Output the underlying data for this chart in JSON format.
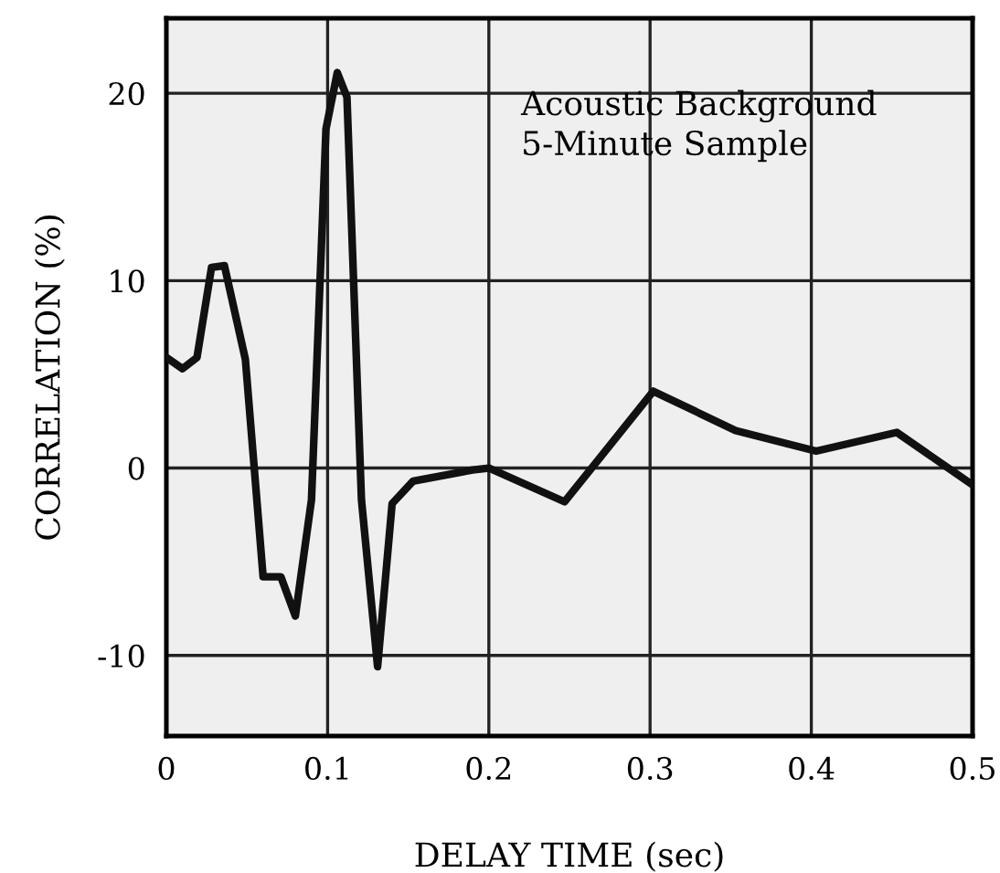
{
  "chart_data": {
    "type": "line",
    "xlabel": "DELAY TIME (sec)",
    "ylabel": "CORRELATION (%)",
    "annotations": [
      "Acoustic Background\n5-Minute Sample"
    ],
    "series": [
      {
        "color": "#111111",
        "x": [
          0,
          0.01,
          0.019,
          0.028,
          0.036,
          0.049,
          0.06,
          0.071,
          0.08,
          0.09,
          0.099,
          0.106,
          0.112,
          0.121,
          0.131,
          0.14,
          0.153,
          0.19,
          0.2,
          0.247,
          0.302,
          0.353,
          0.403,
          0.453,
          0.5
        ],
        "values": [
          5.9,
          5.3,
          5.9,
          10.7,
          10.8,
          5.8,
          -5.8,
          -5.8,
          -7.9,
          -1.7,
          18.1,
          21.1,
          19.8,
          -1.7,
          -10.6,
          -1.9,
          -0.7,
          -0.1,
          0,
          -1.8,
          4.1,
          2.0,
          0.9,
          1.9,
          -0.9
        ]
      }
    ],
    "xlim": [
      0,
      0.5
    ],
    "ylim": [
      -14.3,
      24
    ],
    "xticks": [
      0,
      0.1,
      0.2,
      0.3,
      0.4,
      0.5
    ],
    "yticks": [
      {
        "value": -10,
        "label": "-10"
      },
      0,
      10,
      20
    ],
    "grid": true,
    "line_style": "solid",
    "marker": "none"
  }
}
